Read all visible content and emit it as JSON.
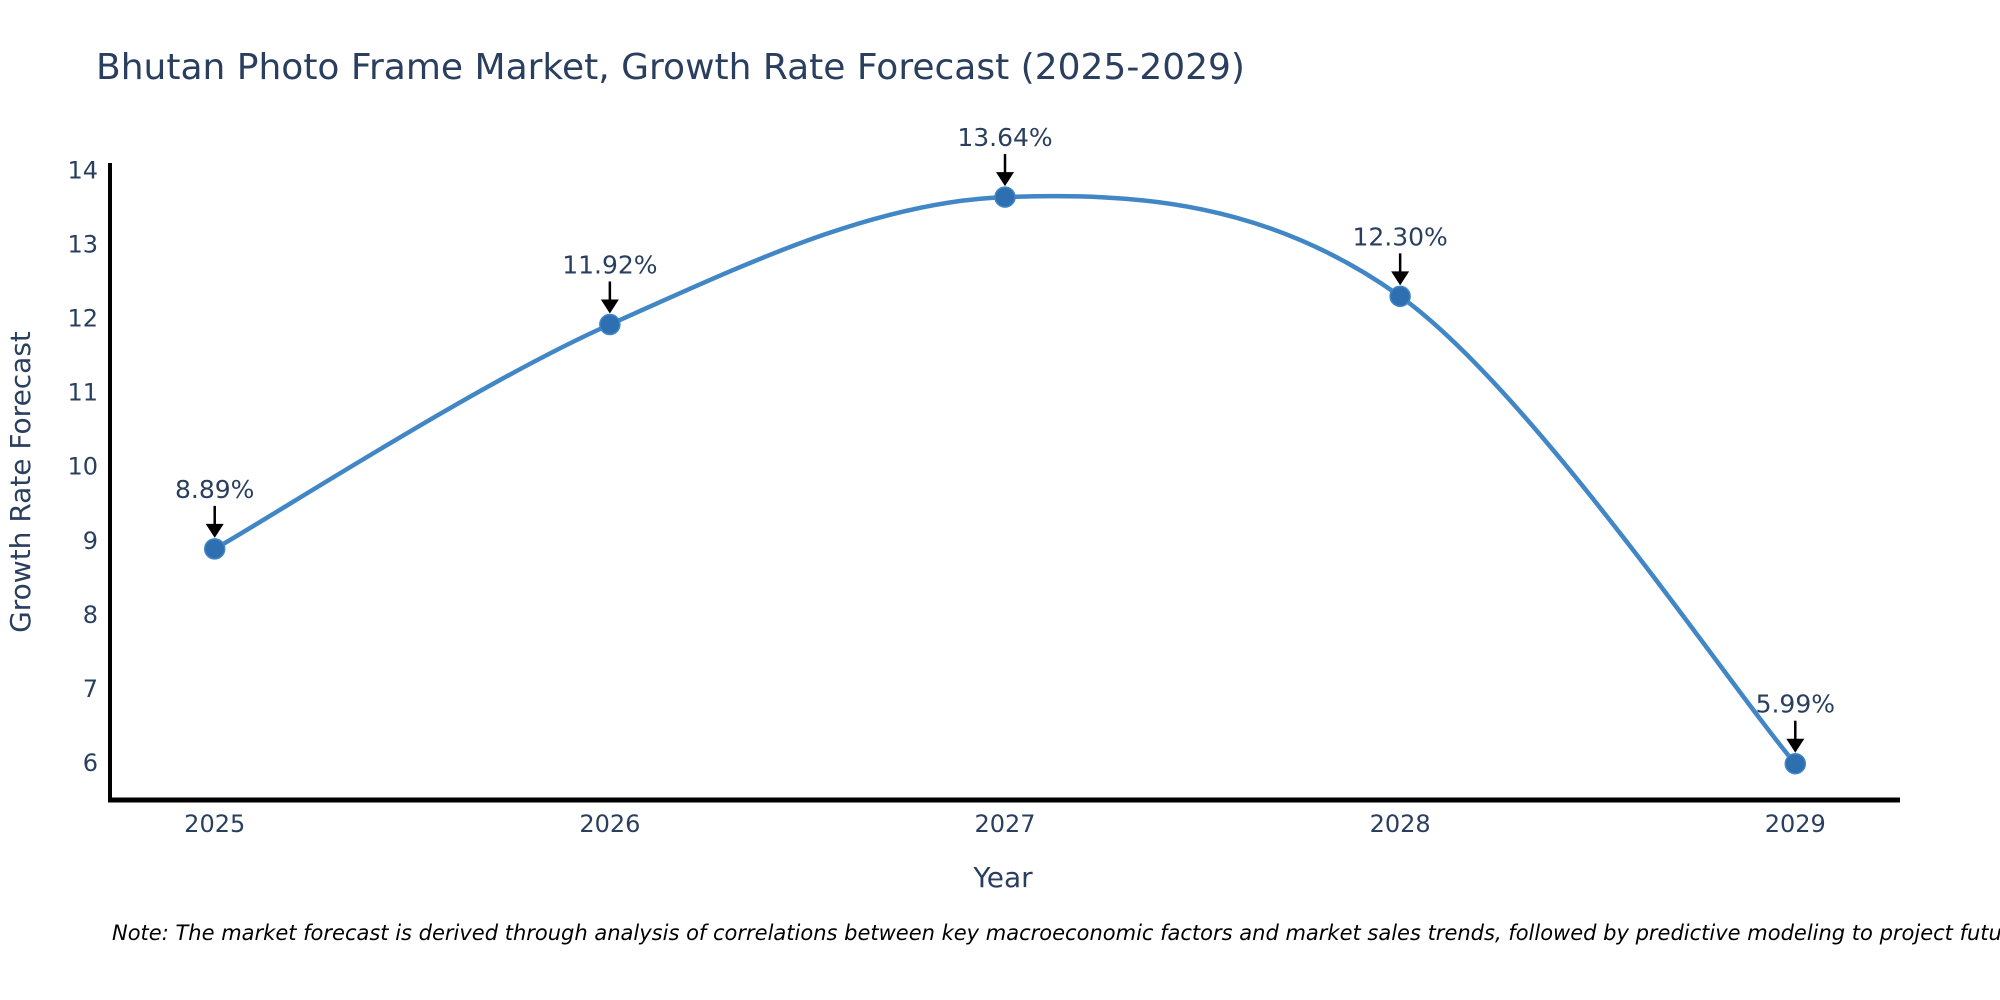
{
  "title": "Bhutan Photo Frame Market, Growth Rate Forecast (2025-2029)",
  "note": "Note: The market forecast is derived through analysis of correlations between key macroeconomic factors and market sales trends, followed by predictive modeling to project future sales",
  "chart_data": {
    "type": "line",
    "title": "Bhutan Photo Frame Market, Growth Rate Forecast (2025-2029)",
    "xlabel": "Year",
    "ylabel": "Growth Rate Forecast",
    "x": [
      2025,
      2026,
      2027,
      2028,
      2029
    ],
    "y": [
      8.89,
      11.92,
      13.64,
      12.3,
      5.99
    ],
    "point_labels": [
      "8.89%",
      "11.92%",
      "13.64%",
      "12.30%",
      "5.99%"
    ],
    "xticks": [
      2025,
      2026,
      2027,
      2028,
      2029
    ],
    "yticks": [
      6,
      7,
      8,
      9,
      10,
      11,
      12,
      13,
      14
    ],
    "xlim": [
      2024.735,
      2029.265
    ],
    "ylim": [
      5.5,
      14.1
    ],
    "line_shape": "spline",
    "grid": false,
    "legend": "none",
    "colors": {
      "line": "#4186c5",
      "marker": "#2d6fb0",
      "axis": "#000000",
      "text": "#2a3f5f",
      "annotation_arrow": "#000000",
      "note": "#000000"
    }
  }
}
